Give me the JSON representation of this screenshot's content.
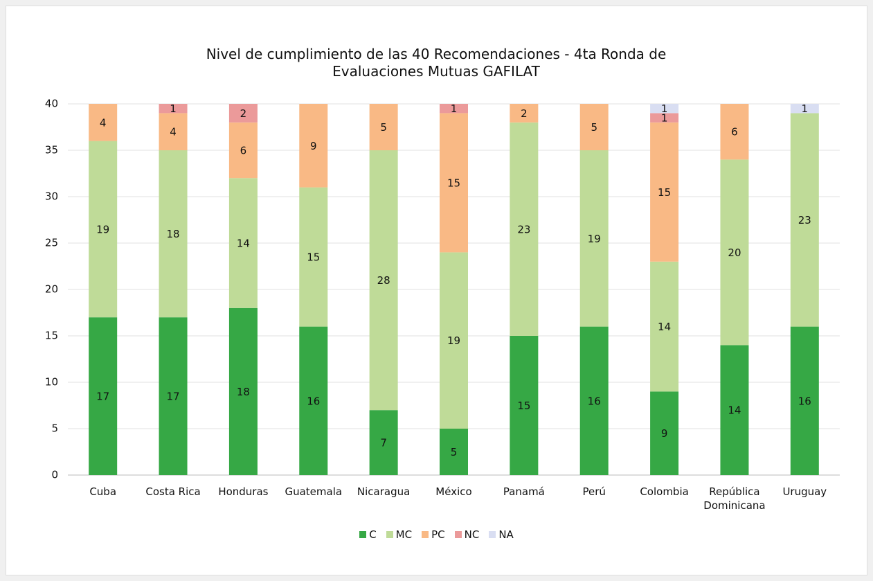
{
  "chart_data": {
    "type": "stacked_bar",
    "title": "Nivel de cumplimiento de las 40 Recomendaciones - 4ta Ronda de Evaluaciones Mutuas GAFILAT",
    "categories": [
      "Cuba",
      "Costa Rica",
      "Honduras",
      "Guatemala",
      "Nicaragua",
      "México",
      "Panamá",
      "Perú",
      "Colombia",
      "República Dominicana",
      "Uruguay"
    ],
    "series": [
      {
        "name": "C",
        "color": "#36a845",
        "values": [
          17,
          17,
          18,
          16,
          7,
          5,
          15,
          16,
          9,
          14,
          16
        ]
      },
      {
        "name": "MC",
        "color": "#bfdb98",
        "values": [
          19,
          18,
          14,
          15,
          28,
          19,
          23,
          19,
          14,
          20,
          23
        ]
      },
      {
        "name": "PC",
        "color": "#f9b985",
        "values": [
          4,
          4,
          6,
          9,
          5,
          15,
          2,
          5,
          15,
          6,
          null
        ]
      },
      {
        "name": "NC",
        "color": "#eb9a9a",
        "values": [
          null,
          1,
          2,
          null,
          null,
          1,
          null,
          null,
          1,
          null,
          null
        ]
      },
      {
        "name": "NA",
        "color": "#d9def2",
        "values": [
          null,
          null,
          null,
          null,
          null,
          null,
          null,
          null,
          1,
          null,
          1
        ]
      }
    ],
    "ylim": [
      0,
      40
    ],
    "yticks": [
      0,
      5,
      10,
      15,
      20,
      25,
      30,
      35,
      40
    ],
    "grid": true,
    "legend": "bottom"
  }
}
